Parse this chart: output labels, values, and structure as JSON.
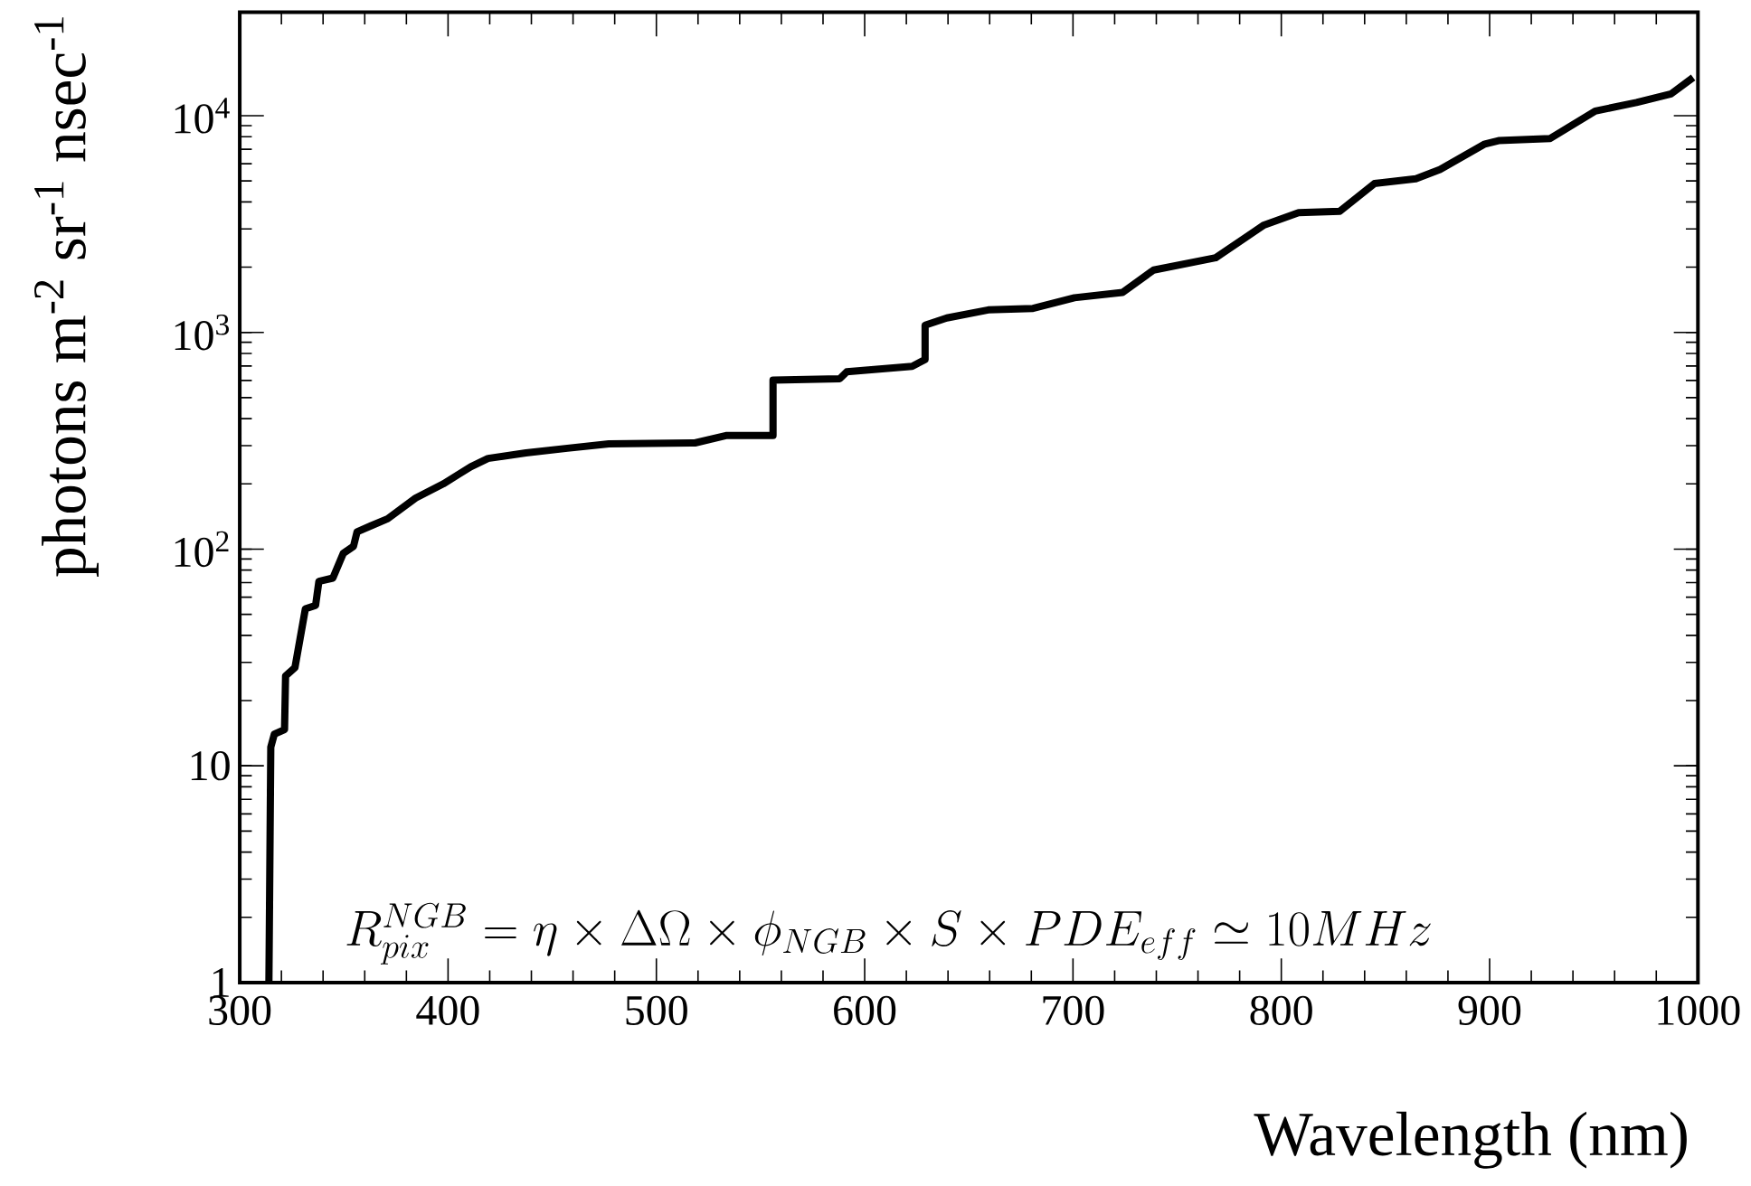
{
  "chart_data": {
    "type": "line",
    "xlabel": "Wavelength (nm)",
    "ylabel": "photons m$^{-2}$ sr$^{-1}$ nsec$^{-1}$",
    "annotations": [
      "R_{pix}^{NGB} = \\eta \\times \\Delta\\Omega \\times \\phi_{NGB} \\times S \\times PDE_{eff} \\simeq 10MHz"
    ],
    "log": "y",
    "xlim": [
      300,
      1000
    ],
    "ylim": [
      1,
      30000
    ],
    "xticks": [
      300,
      400,
      500,
      600,
      700,
      800,
      900,
      1000
    ],
    "yticks": [
      1,
      10,
      {
        "value": 100,
        "label": "10$^{2}$"
      },
      {
        "value": 1000,
        "label": "10$^{3}$"
      },
      {
        "value": 10000,
        "label": "10$^{4}$"
      }
    ],
    "line_style": "solid",
    "series": [
      {
        "color": "#000000",
        "x": [
          314,
          314.9,
          316.6,
          321.5,
          322,
          326.5,
          331.5,
          336.4,
          338,
          344.7,
          349.7,
          354.6,
          356.3,
          362.9,
          371,
          384.4,
          397.7,
          410.9,
          419.2,
          437.4,
          457.3,
          477.2,
          518.5,
          533.4,
          556,
          556,
          588,
          591.4,
          622.8,
          629,
          629,
          639.4,
          659.3,
          680.8,
          700.7,
          723.8,
          738.7,
          768.5,
          791.7,
          808.3,
          828.1,
          844.7,
          864.6,
          876.2,
          897.7,
          904.3,
          929.1,
          950.7,
          970.5,
          987.1,
          997.7
        ],
        "values": [
          1,
          12.2,
          14,
          14.7,
          26,
          28.4,
          53,
          55,
          71,
          73.5,
          95.6,
          103,
          120,
          128,
          138,
          172,
          200,
          240,
          262,
          278,
          292,
          306,
          309,
          334,
          334,
          602,
          611,
          658,
          697,
          750,
          1080,
          1166,
          1270,
          1290,
          1445,
          1530,
          1940,
          2210,
          3130,
          3570,
          3625,
          4860,
          5120,
          5640,
          7400,
          7670,
          7850,
          10500,
          11500,
          12600,
          15000
        ]
      }
    ]
  }
}
